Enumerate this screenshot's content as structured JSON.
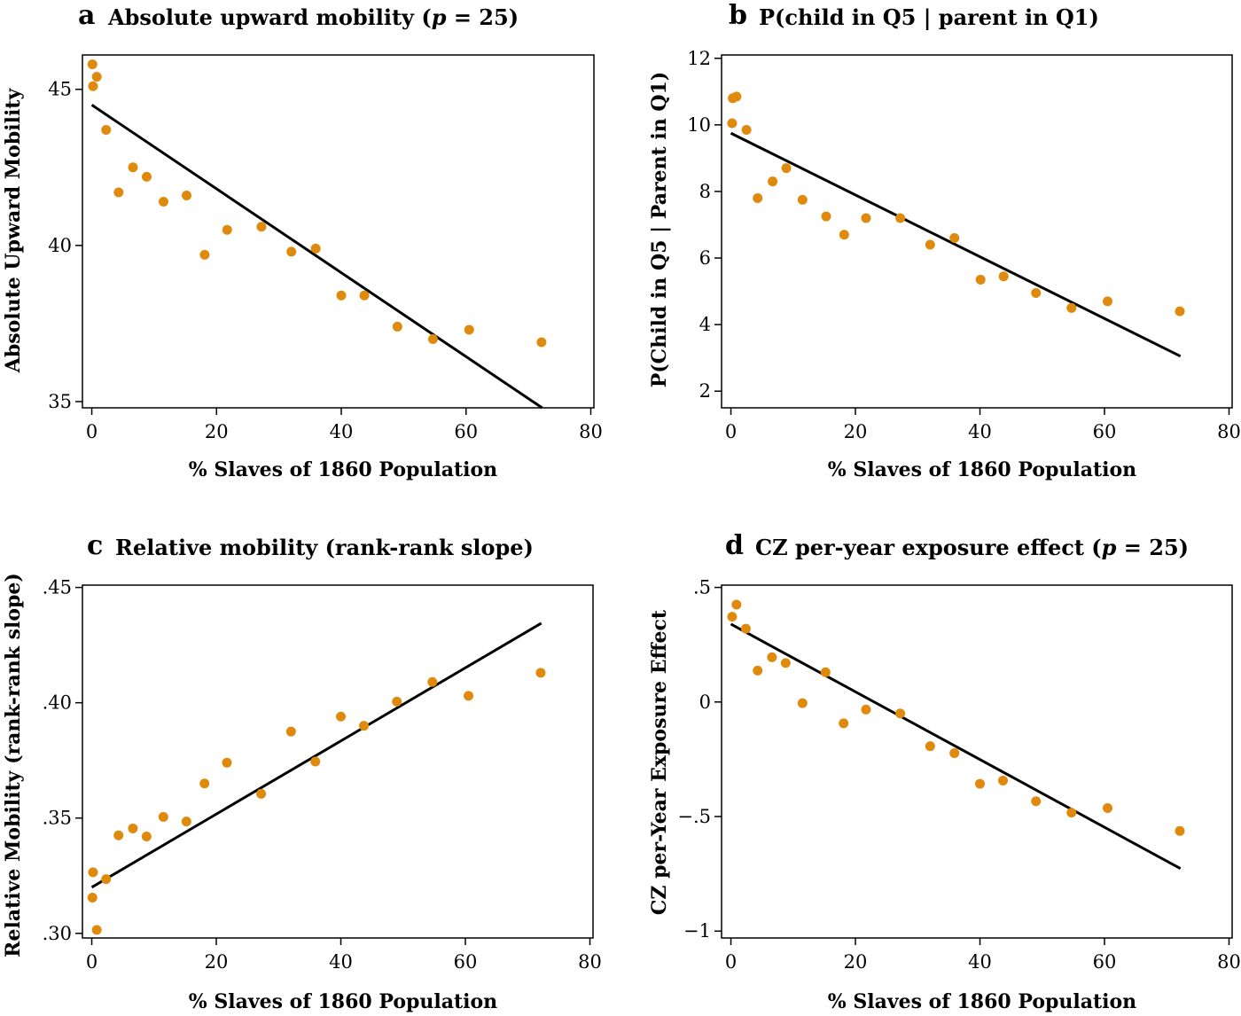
{
  "colors": {
    "point": "#E08A0D",
    "fit_line": "#000000",
    "frame": "#000000"
  },
  "chart_data": [
    {
      "type": "scatter",
      "letter": "a",
      "title_pre": "Absolute upward mobility (",
      "title_var": "p",
      "title_post": " = 25)",
      "xlabel": "% Slaves of 1860 Population",
      "ylabel": "Absolute Upward Mobility",
      "xlim": [
        -1.5,
        80.5
      ],
      "ylim": [
        34.8,
        46.1
      ],
      "xticks": [
        0,
        20,
        40,
        60,
        80
      ],
      "yticks": [
        35,
        40,
        45
      ],
      "xtick_labels": [
        "0",
        "20",
        "40",
        "60",
        "80"
      ],
      "ytick_labels": [
        "35",
        "40",
        "45"
      ],
      "points": [
        {
          "x": 0.1,
          "y": 45.8
        },
        {
          "x": 0.2,
          "y": 45.1
        },
        {
          "x": 0.8,
          "y": 45.4
        },
        {
          "x": 2.3,
          "y": 43.7
        },
        {
          "x": 4.3,
          "y": 41.7
        },
        {
          "x": 6.6,
          "y": 42.5
        },
        {
          "x": 8.8,
          "y": 42.2
        },
        {
          "x": 11.5,
          "y": 41.4
        },
        {
          "x": 15.2,
          "y": 41.6
        },
        {
          "x": 18.1,
          "y": 39.7
        },
        {
          "x": 21.7,
          "y": 40.5
        },
        {
          "x": 27.2,
          "y": 40.6
        },
        {
          "x": 32.0,
          "y": 39.8
        },
        {
          "x": 35.9,
          "y": 39.9
        },
        {
          "x": 40.0,
          "y": 38.4
        },
        {
          "x": 43.7,
          "y": 38.4
        },
        {
          "x": 49.0,
          "y": 37.4
        },
        {
          "x": 54.7,
          "y": 37.0
        },
        {
          "x": 60.5,
          "y": 37.3
        },
        {
          "x": 72.1,
          "y": 36.9
        }
      ],
      "fit": {
        "x": [
          0,
          72.2
        ],
        "y": [
          44.5,
          34.8
        ]
      }
    },
    {
      "type": "scatter",
      "letter": "b",
      "title_pre": "P(child in Q5 | parent in Q1)",
      "title_var": "",
      "title_post": "",
      "xlabel": "% Slaves of 1860 Population",
      "ylabel": "P(Child in Q5 | Parent in Q1)",
      "xlim": [
        -1.5,
        80.5
      ],
      "ylim": [
        1.5,
        12.1
      ],
      "xticks": [
        0,
        20,
        40,
        60,
        80
      ],
      "yticks": [
        2,
        4,
        6,
        8,
        10,
        12
      ],
      "xtick_labels": [
        "0",
        "20",
        "40",
        "60",
        "80"
      ],
      "ytick_labels": [
        "2",
        "4",
        "6",
        "8",
        "10",
        "12"
      ],
      "points": [
        {
          "x": 0.2,
          "y": 10.05
        },
        {
          "x": 0.3,
          "y": 10.8
        },
        {
          "x": 0.9,
          "y": 10.85
        },
        {
          "x": 2.5,
          "y": 9.85
        },
        {
          "x": 4.3,
          "y": 7.8
        },
        {
          "x": 6.7,
          "y": 8.3
        },
        {
          "x": 8.9,
          "y": 8.7
        },
        {
          "x": 11.5,
          "y": 7.75
        },
        {
          "x": 15.3,
          "y": 7.25
        },
        {
          "x": 18.2,
          "y": 6.7
        },
        {
          "x": 21.7,
          "y": 7.2
        },
        {
          "x": 27.2,
          "y": 7.2
        },
        {
          "x": 32.0,
          "y": 6.4
        },
        {
          "x": 35.9,
          "y": 6.6
        },
        {
          "x": 40.1,
          "y": 5.35
        },
        {
          "x": 43.8,
          "y": 5.45
        },
        {
          "x": 49.0,
          "y": 4.95
        },
        {
          "x": 54.7,
          "y": 4.5
        },
        {
          "x": 60.5,
          "y": 4.7
        },
        {
          "x": 72.1,
          "y": 4.4
        }
      ],
      "fit": {
        "x": [
          0,
          72.2
        ],
        "y": [
          9.75,
          3.05
        ]
      }
    },
    {
      "type": "scatter",
      "letter": "c",
      "title_pre": "Relative mobility (rank-rank slope)",
      "title_var": "",
      "title_post": "",
      "xlabel": "% Slaves of 1860 Population",
      "ylabel": "Relative Mobility (rank-rank slope)",
      "xlim": [
        -1.5,
        80.5
      ],
      "ylim": [
        0.298,
        0.451
      ],
      "xticks": [
        0,
        20,
        40,
        60,
        80
      ],
      "yticks": [
        0.3,
        0.35,
        0.4,
        0.45
      ],
      "xtick_labels": [
        "0",
        "20",
        "40",
        "60",
        "80"
      ],
      "ytick_labels": [
        ".30",
        ".35",
        ".40",
        ".45"
      ],
      "points": [
        {
          "x": 0.1,
          "y": 0.3155
        },
        {
          "x": 0.2,
          "y": 0.3265
        },
        {
          "x": 0.8,
          "y": 0.3015
        },
        {
          "x": 2.3,
          "y": 0.3235
        },
        {
          "x": 4.3,
          "y": 0.3425
        },
        {
          "x": 6.6,
          "y": 0.3455
        },
        {
          "x": 8.8,
          "y": 0.342
        },
        {
          "x": 11.5,
          "y": 0.3505
        },
        {
          "x": 15.2,
          "y": 0.3485
        },
        {
          "x": 18.1,
          "y": 0.365
        },
        {
          "x": 21.7,
          "y": 0.374
        },
        {
          "x": 27.2,
          "y": 0.3605
        },
        {
          "x": 32.0,
          "y": 0.3875
        },
        {
          "x": 35.9,
          "y": 0.3745
        },
        {
          "x": 40.0,
          "y": 0.394
        },
        {
          "x": 43.7,
          "y": 0.39
        },
        {
          "x": 49.0,
          "y": 0.4005
        },
        {
          "x": 54.7,
          "y": 0.409
        },
        {
          "x": 60.5,
          "y": 0.403
        },
        {
          "x": 72.1,
          "y": 0.413
        }
      ],
      "fit": {
        "x": [
          0,
          72.2
        ],
        "y": [
          0.32,
          0.4345
        ]
      }
    },
    {
      "type": "scatter",
      "letter": "d",
      "title_pre": "CZ per-year exposure effect (",
      "title_var": "p",
      "title_post": " = 25)",
      "xlabel": "% Slaves of 1860 Population",
      "ylabel": "CZ per-Year Exposure Effect",
      "xlim": [
        -1.5,
        80.5
      ],
      "ylim": [
        -1.03,
        0.51
      ],
      "xticks": [
        0,
        20,
        40,
        60,
        80
      ],
      "yticks": [
        -1,
        -0.5,
        0,
        0.5
      ],
      "xtick_labels": [
        "0",
        "20",
        "40",
        "60",
        "80"
      ],
      "ytick_labels": [
        "−1",
        "−.5",
        "0",
        ".5"
      ],
      "points": [
        {
          "x": 0.2,
          "y": 0.372
        },
        {
          "x": 0.9,
          "y": 0.425
        },
        {
          "x": 2.4,
          "y": 0.32
        },
        {
          "x": 4.3,
          "y": 0.137
        },
        {
          "x": 6.6,
          "y": 0.195
        },
        {
          "x": 8.8,
          "y": 0.17
        },
        {
          "x": 11.5,
          "y": -0.005
        },
        {
          "x": 15.2,
          "y": 0.13
        },
        {
          "x": 18.1,
          "y": -0.093
        },
        {
          "x": 21.7,
          "y": -0.033
        },
        {
          "x": 27.2,
          "y": -0.05
        },
        {
          "x": 32.0,
          "y": -0.193
        },
        {
          "x": 35.9,
          "y": -0.223
        },
        {
          "x": 40.0,
          "y": -0.357
        },
        {
          "x": 43.7,
          "y": -0.343
        },
        {
          "x": 49.0,
          "y": -0.433
        },
        {
          "x": 54.7,
          "y": -0.483
        },
        {
          "x": 60.5,
          "y": -0.463
        },
        {
          "x": 72.1,
          "y": -0.563
        }
      ],
      "fit": {
        "x": [
          0,
          72.2
        ],
        "y": [
          0.34,
          -0.727
        ]
      }
    }
  ]
}
